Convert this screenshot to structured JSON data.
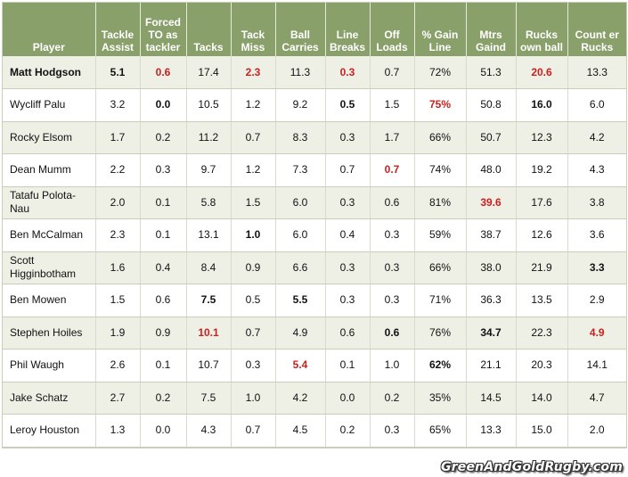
{
  "chart_data": {
    "type": "table",
    "columns": [
      "Player",
      "Tackle Assist",
      "Forced TO as tackler",
      "Tacks",
      "Tack Miss",
      "Ball Carries",
      "Line Breaks",
      "Off Loads",
      "% Gain Line",
      "Mtrs Gaind",
      "Rucks own ball",
      "Count er Rucks"
    ],
    "rows": [
      [
        "Matt Hodgson",
        "5.1",
        "0.6",
        "17.4",
        "2.3",
        "11.3",
        "0.3",
        "0.7",
        "72%",
        "51.3",
        "20.6",
        "13.3"
      ],
      [
        "Wycliff Palu",
        "3.2",
        "0.0",
        "10.5",
        "1.2",
        "9.2",
        "0.5",
        "1.5",
        "75%",
        "50.8",
        "16.0",
        "6.0"
      ],
      [
        "Rocky Elsom",
        "1.7",
        "0.2",
        "11.2",
        "0.7",
        "8.3",
        "0.3",
        "1.7",
        "66%",
        "50.7",
        "12.3",
        "4.2"
      ],
      [
        "Dean Mumm",
        "2.2",
        "0.3",
        "9.7",
        "1.2",
        "7.3",
        "0.7",
        "0.7",
        "74%",
        "48.0",
        "19.2",
        "4.3"
      ],
      [
        "Tatafu Polota-Nau",
        "2.0",
        "0.1",
        "5.8",
        "1.5",
        "6.0",
        "0.3",
        "0.6",
        "81%",
        "39.6",
        "17.6",
        "3.8"
      ],
      [
        "Ben McCalman",
        "2.3",
        "0.1",
        "13.1",
        "1.0",
        "6.0",
        "0.4",
        "0.3",
        "59%",
        "38.7",
        "12.6",
        "3.6"
      ],
      [
        "Scott Higginbotham",
        "1.6",
        "0.4",
        "8.4",
        "0.9",
        "6.6",
        "0.3",
        "0.3",
        "66%",
        "38.0",
        "21.9",
        "3.3"
      ],
      [
        "Ben Mowen",
        "1.5",
        "0.6",
        "7.5",
        "0.5",
        "5.5",
        "0.3",
        "0.3",
        "71%",
        "36.3",
        "13.5",
        "2.9"
      ],
      [
        "Stephen Hoiles",
        "1.9",
        "0.9",
        "10.1",
        "0.7",
        "4.9",
        "0.6",
        "0.6",
        "76%",
        "34.7",
        "22.3",
        "4.9"
      ],
      [
        "Phil Waugh",
        "2.6",
        "0.1",
        "10.7",
        "0.3",
        "5.4",
        "0.1",
        "1.0",
        "62%",
        "21.1",
        "20.3",
        "14.1"
      ],
      [
        "Jake Schatz",
        "2.7",
        "0.2",
        "7.5",
        "1.0",
        "4.2",
        "0.0",
        "0.2",
        "35%",
        "14.5",
        "14.0",
        "4.7"
      ],
      [
        "Leroy Houston",
        "1.3",
        "0.0",
        "4.3",
        "0.7",
        "4.5",
        "0.2",
        "0.3",
        "65%",
        "13.3",
        "15.0",
        "2.0"
      ]
    ],
    "highlight_red": [
      [
        0,
        1
      ],
      [
        0,
        3
      ],
      [
        0,
        5
      ],
      [
        0,
        9
      ],
      [
        1,
        7
      ],
      [
        3,
        6
      ],
      [
        4,
        8
      ],
      [
        8,
        2
      ],
      [
        8,
        10
      ],
      [
        9,
        4
      ],
      [
        9,
        11
      ]
    ],
    "highlight_bold": [
      [
        0,
        0
      ],
      [
        0,
        11
      ],
      [
        1,
        1
      ],
      [
        1,
        5
      ],
      [
        1,
        9
      ],
      [
        5,
        3
      ],
      [
        6,
        10
      ],
      [
        7,
        2
      ],
      [
        7,
        4
      ],
      [
        8,
        6
      ],
      [
        8,
        8
      ],
      [
        9,
        7
      ]
    ],
    "colors": {
      "header_bg": "#8aa06a",
      "row_alt_bg": "#eef0e6",
      "highlight_red": "#cc1f1f"
    }
  },
  "watermark": "GreenAndGoldRugby.com"
}
